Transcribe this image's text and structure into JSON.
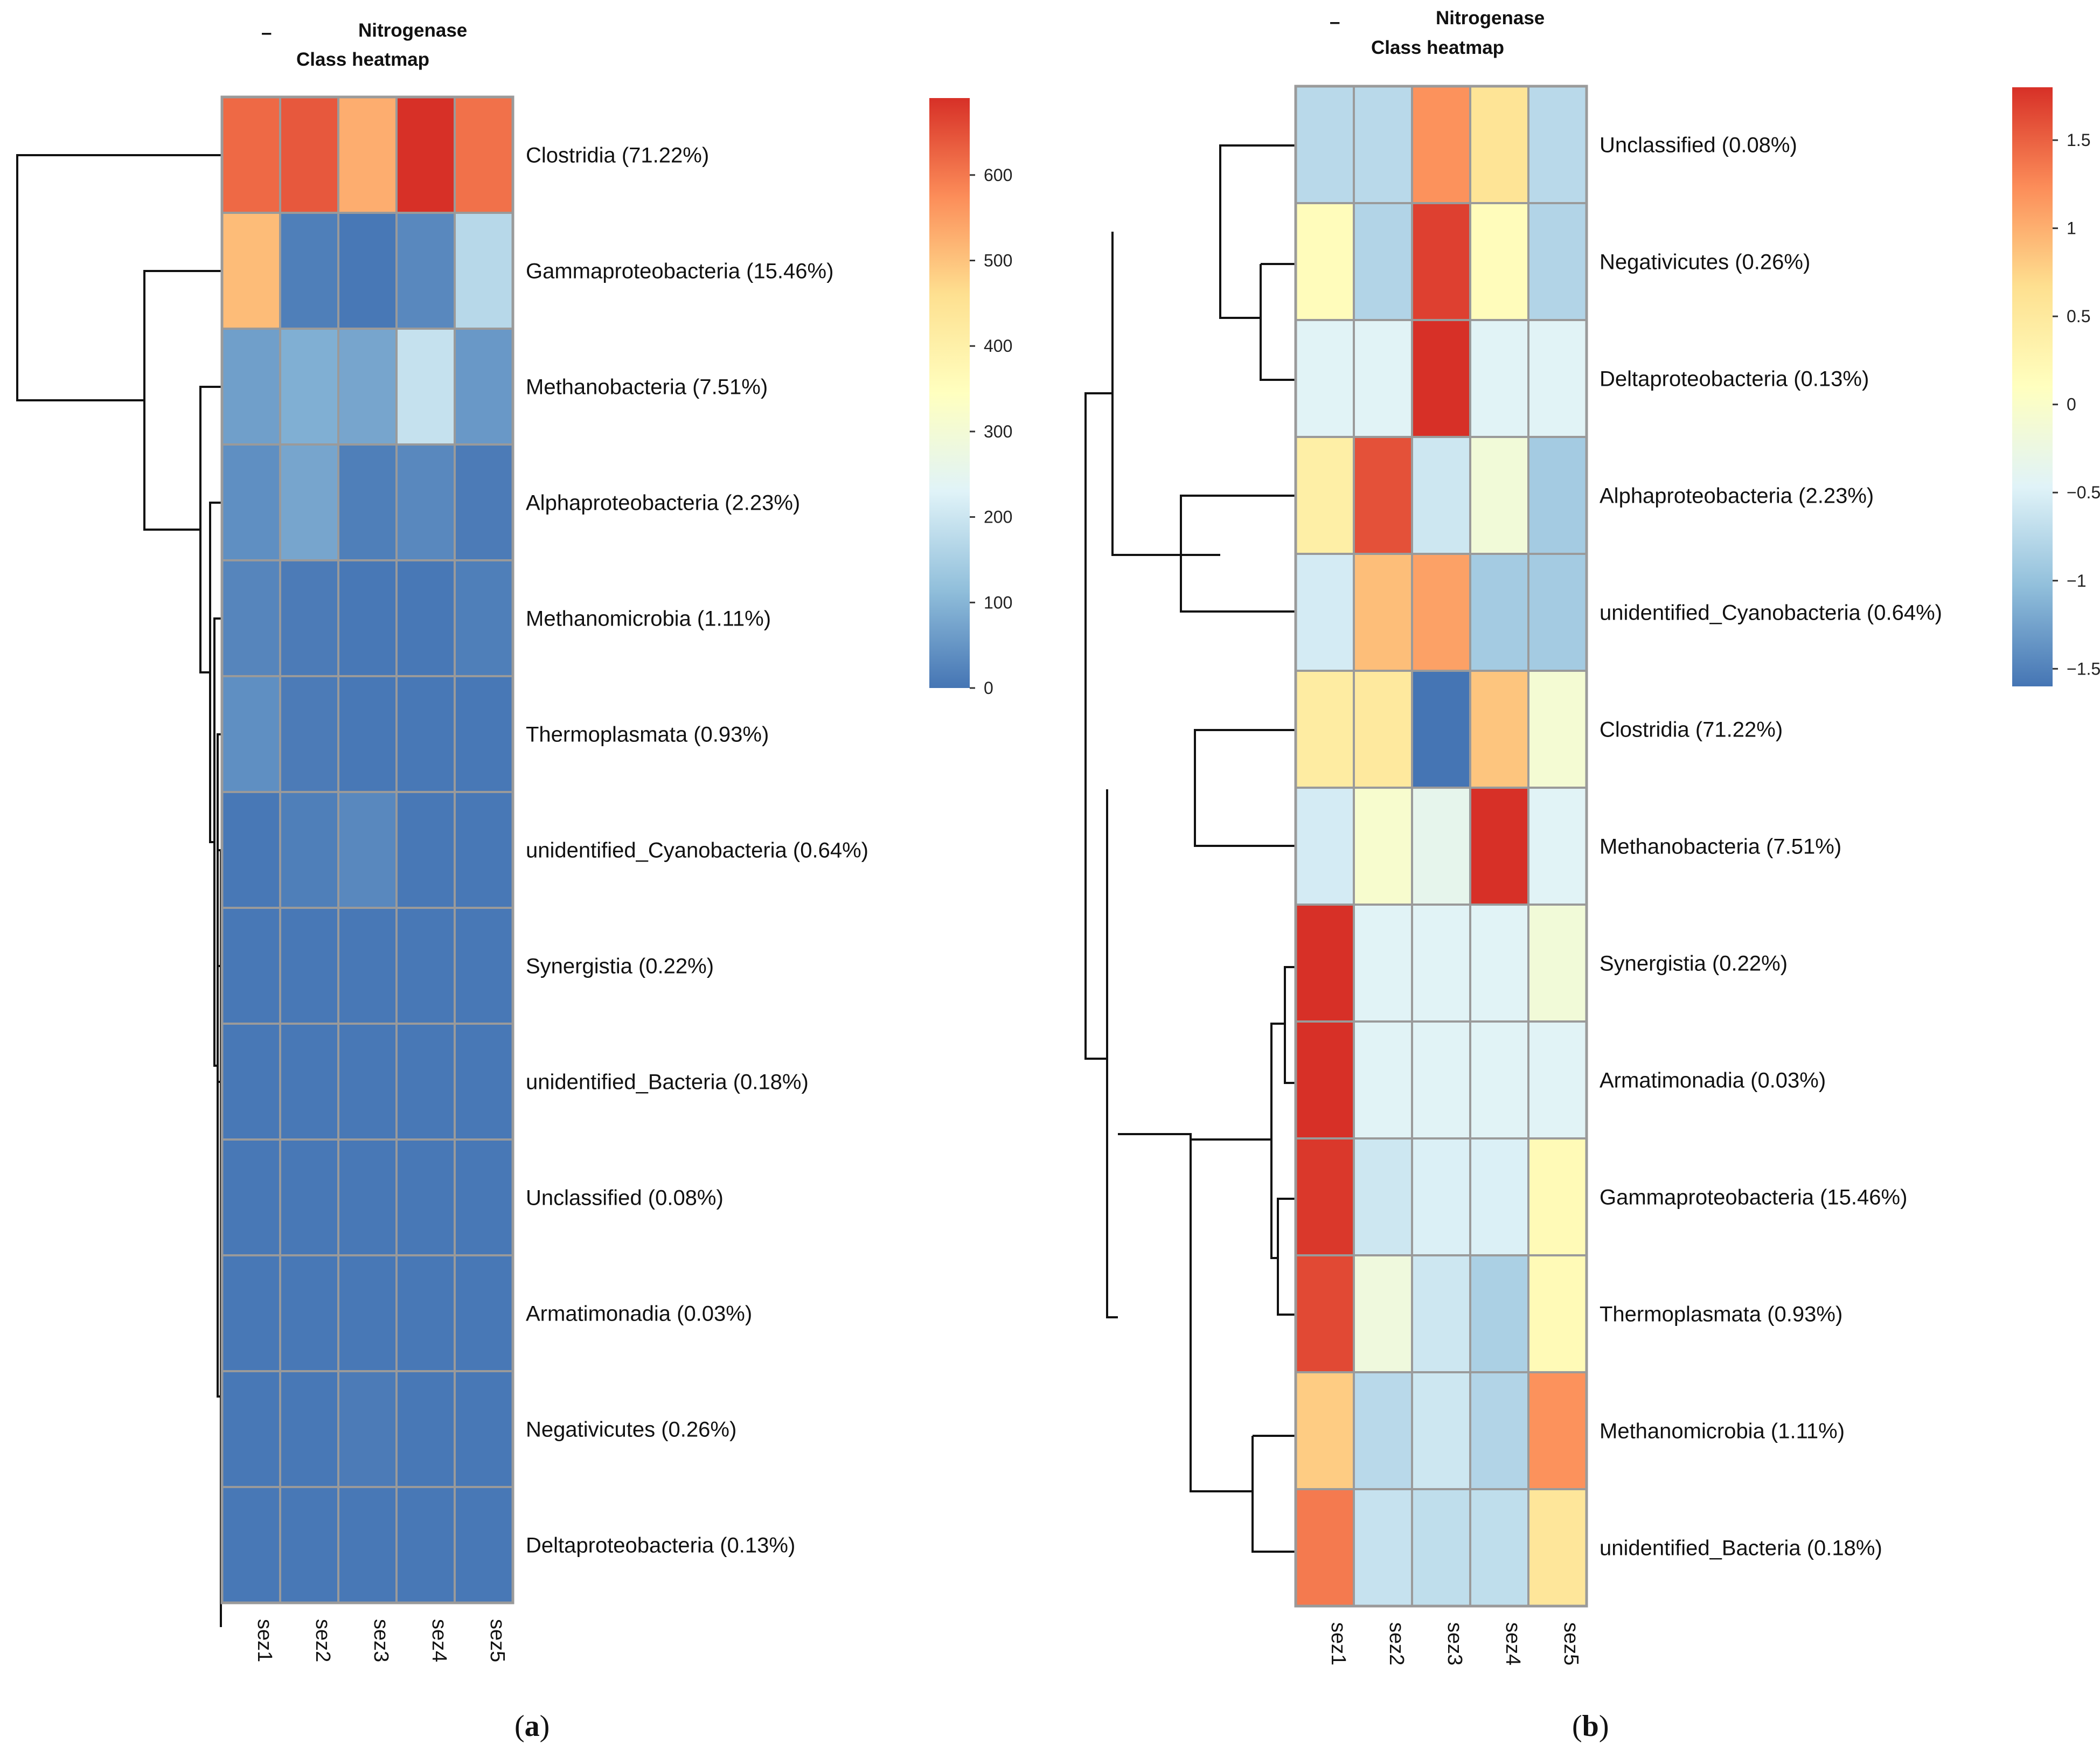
{
  "chart_data": [
    {
      "type": "heatmap",
      "panel_label": "a",
      "title_line1": "Nitrogenase",
      "title_line2": "Class heatmap",
      "title_dash": "–",
      "columns": [
        "sez1",
        "sez2",
        "sez3",
        "sez4",
        "sez5"
      ],
      "rows": [
        "Clostridia (71.22%)",
        "Gammaproteobacteria (15.46%)",
        "Methanobacteria (7.51%)",
        "Alphaproteobacteria (2.23%)",
        "Methanomicrobia (1.11%)",
        "Thermoplasmata (0.93%)",
        "unidentified_Cyanobacteria (0.64%)",
        "Synergistia (0.22%)",
        "unidentified_Bacteria (0.18%)",
        "Unclassified (0.08%)",
        "Armatimonadia (0.03%)",
        "Negativicutes (0.26%)",
        "Deltaproteobacteria (0.13%)"
      ],
      "values": [
        [
          620,
          640,
          530,
          690,
          610
        ],
        [
          510,
          15,
          5,
          30,
          170
        ],
        [
          65,
          90,
          75,
          190,
          55
        ],
        [
          40,
          75,
          15,
          30,
          10
        ],
        [
          25,
          10,
          5,
          5,
          15
        ],
        [
          40,
          10,
          5,
          5,
          5
        ],
        [
          5,
          15,
          30,
          5,
          5
        ],
        [
          5,
          5,
          5,
          5,
          5
        ],
        [
          5,
          5,
          5,
          5,
          5
        ],
        [
          5,
          5,
          5,
          5,
          5
        ],
        [
          5,
          5,
          5,
          5,
          5
        ],
        [
          5,
          5,
          10,
          5,
          5
        ],
        [
          5,
          5,
          5,
          5,
          5
        ]
      ],
      "color_scale": {
        "min": 0,
        "max": 690,
        "stops": [
          "#4575b4",
          "#91bfdb",
          "#e0f3f8",
          "#ffffbf",
          "#fee090",
          "#fc8d59",
          "#d73027"
        ]
      },
      "legend_ticks": [
        0,
        100,
        200,
        300,
        400,
        500,
        600
      ],
      "legend_position": "top-right"
    },
    {
      "type": "heatmap",
      "panel_label": "b",
      "title_line1": "Nitrogenase",
      "title_line2": "Class heatmap",
      "title_dash": "–",
      "columns": [
        "sez1",
        "sez2",
        "sez3",
        "sez4",
        "sez5"
      ],
      "rows": [
        "Unclassified (0.08%)",
        "Negativicutes (0.26%)",
        "Deltaproteobacteria (0.13%)",
        "Alphaproteobacteria (2.23%)",
        "unidentified_Cyanobacteria (0.64%)",
        "Clostridia (71.22%)",
        "Methanobacteria (7.51%)",
        "Synergistia (0.22%)",
        "Armatimonadia (0.03%)",
        "Gammaproteobacteria (15.46%)",
        "Thermoplasmata (0.93%)",
        "Methanomicrobia (1.11%)",
        "unidentified_Bacteria (0.18%)"
      ],
      "values": [
        [
          -0.75,
          -0.75,
          1.2,
          0.6,
          -0.75
        ],
        [
          0.15,
          -0.8,
          1.7,
          0.15,
          -0.8
        ],
        [
          -0.45,
          -0.45,
          1.8,
          -0.45,
          -0.45
        ],
        [
          0.4,
          1.6,
          -0.6,
          -0.15,
          -0.9
        ],
        [
          -0.55,
          0.9,
          1.1,
          -0.9,
          -0.9
        ],
        [
          0.45,
          0.5,
          -1.6,
          0.85,
          -0.1
        ],
        [
          -0.55,
          -0.05,
          -0.35,
          1.8,
          -0.45
        ],
        [
          1.8,
          -0.45,
          -0.45,
          -0.45,
          -0.15
        ],
        [
          1.8,
          -0.45,
          -0.45,
          -0.45,
          -0.45
        ],
        [
          1.75,
          -0.6,
          -0.5,
          -0.5,
          0.2
        ],
        [
          1.65,
          -0.2,
          -0.6,
          -0.85,
          0.2
        ],
        [
          0.8,
          -0.75,
          -0.6,
          -0.8,
          1.2
        ],
        [
          1.35,
          -0.65,
          -0.7,
          -0.7,
          0.55
        ]
      ],
      "color_scale": {
        "min": -1.6,
        "max": 1.8,
        "stops": [
          "#4575b4",
          "#91bfdb",
          "#e0f3f8",
          "#ffffbf",
          "#fee090",
          "#fc8d59",
          "#d73027"
        ]
      },
      "legend_ticks": [
        -1.5,
        -1,
        -0.5,
        0,
        0.5,
        1,
        1.5
      ],
      "legend_tick_labels": [
        "−1.5",
        "−1",
        "−0.5",
        "0",
        "0.5",
        "1",
        "1.5"
      ],
      "legend_position": "top-right"
    }
  ]
}
